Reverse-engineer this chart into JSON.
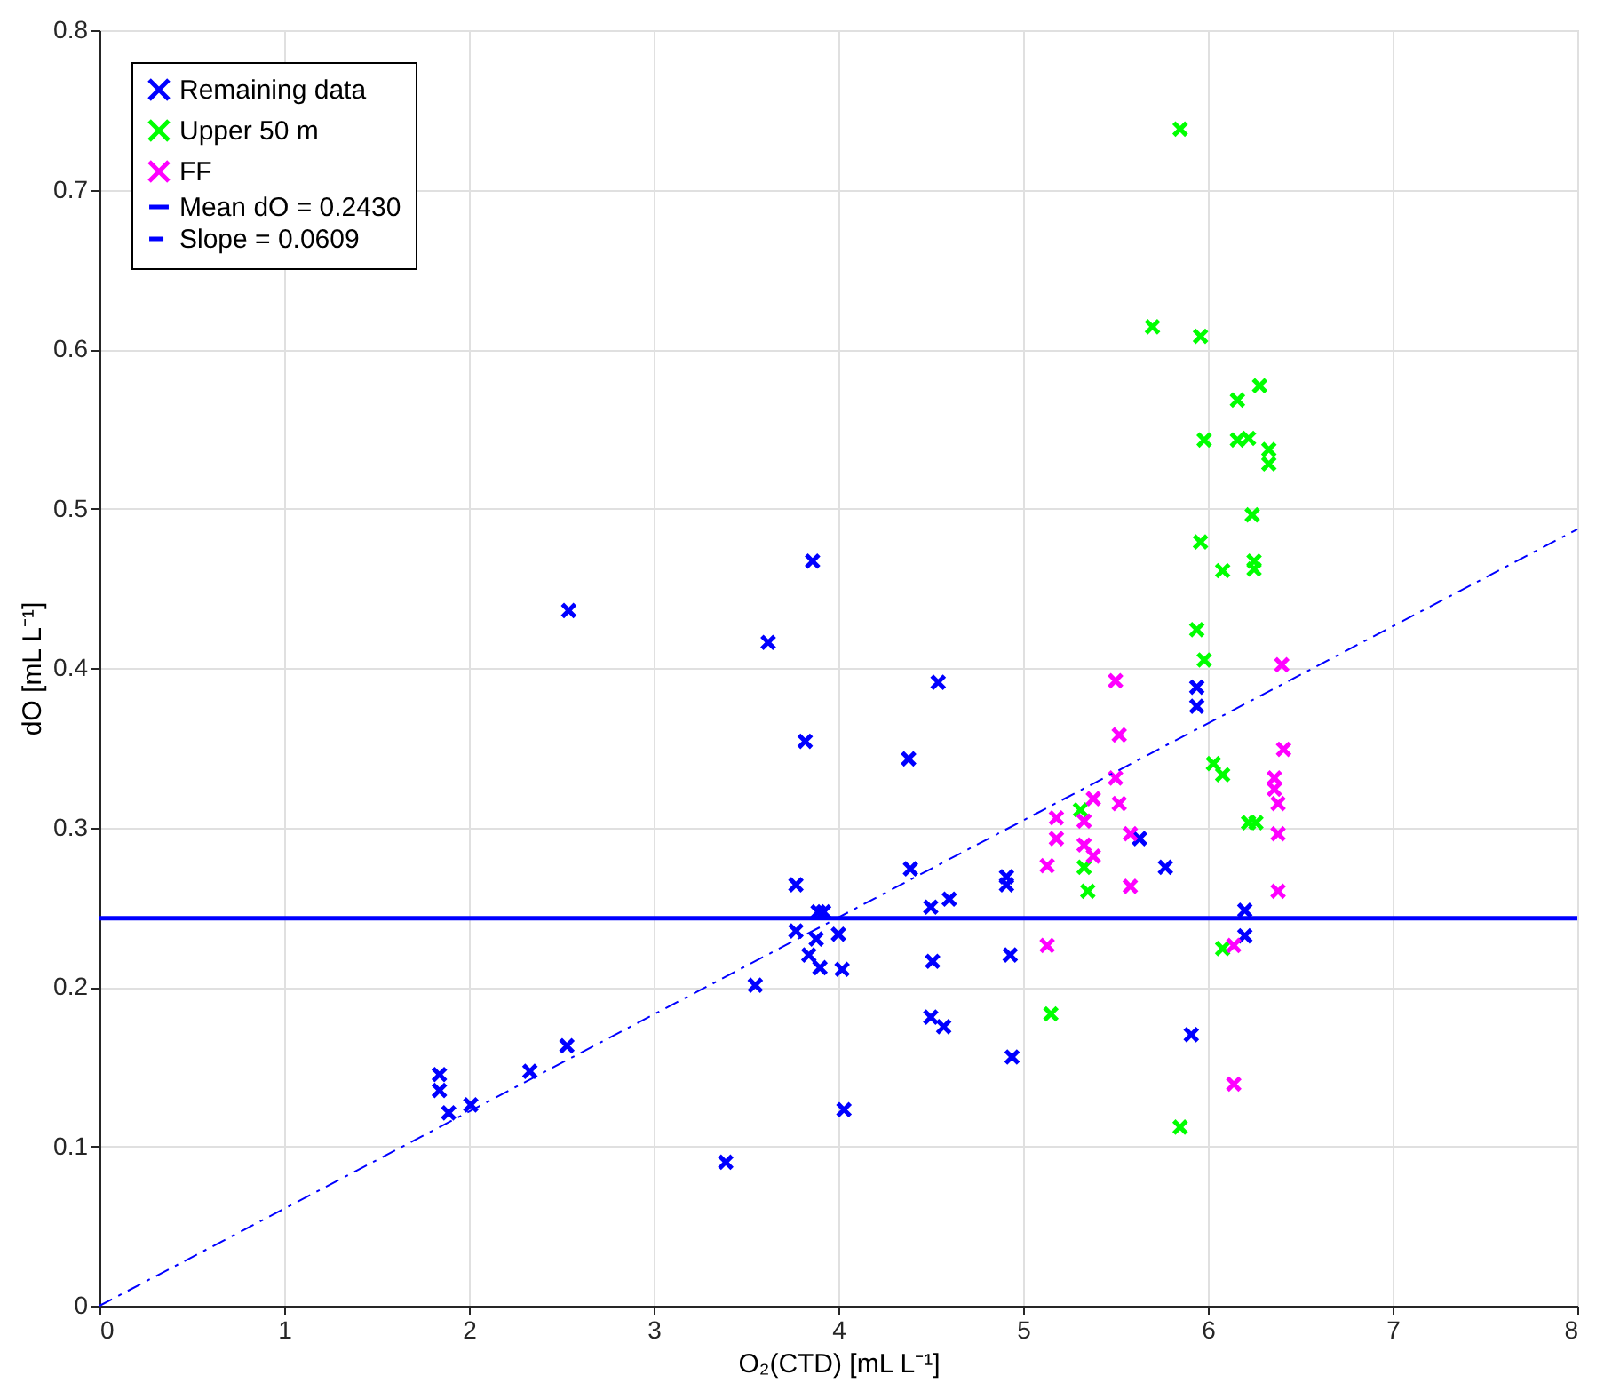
{
  "chart_data": {
    "type": "scatter",
    "xlabel": "O₂(CTD) [mL L⁻¹]",
    "ylabel": "dO [mL L⁻¹]",
    "xlim": [
      0,
      8
    ],
    "ylim": [
      0,
      0.8
    ],
    "xticks": [
      0,
      1,
      2,
      3,
      4,
      5,
      6,
      7,
      8
    ],
    "yticks": [
      0,
      0.1,
      0.2,
      0.3,
      0.4,
      0.5,
      0.6,
      0.7,
      0.8
    ],
    "grid": true,
    "legend": "top left",
    "series": [
      {
        "name": "Remaining data",
        "color": "#0000ff",
        "marker": "cross",
        "x": [
          2.54,
          3.62,
          3.86,
          3.55,
          1.84,
          1.84,
          1.89,
          2.01,
          2.33,
          2.53,
          3.39,
          4.54,
          3.82,
          4.38,
          3.77,
          4.39,
          4.91,
          4.91,
          3.89,
          3.92,
          4.5,
          4.6,
          3.77,
          3.88,
          4.0,
          3.84,
          3.9,
          4.02,
          4.51,
          4.93,
          4.5,
          4.57,
          4.94,
          4.03,
          5.94,
          5.94,
          5.63,
          5.77,
          6.2,
          6.2,
          5.91
        ],
        "values": [
          0.436,
          0.416,
          0.467,
          0.201,
          0.145,
          0.135,
          0.121,
          0.126,
          0.147,
          0.163,
          0.09,
          0.391,
          0.354,
          0.343,
          0.264,
          0.274,
          0.269,
          0.264,
          0.247,
          0.247,
          0.25,
          0.255,
          0.235,
          0.23,
          0.233,
          0.22,
          0.212,
          0.211,
          0.216,
          0.22,
          0.181,
          0.175,
          0.156,
          0.123,
          0.388,
          0.376,
          0.293,
          0.275,
          0.248,
          0.232,
          0.17
        ]
      },
      {
        "name": "Upper 50 m",
        "color": "#00ff00",
        "marker": "cross",
        "x": [
          5.85,
          5.7,
          5.96,
          6.28,
          6.16,
          5.98,
          6.16,
          6.22,
          6.33,
          6.33,
          6.24,
          5.96,
          6.08,
          6.25,
          6.25,
          5.94,
          5.98,
          6.03,
          6.08,
          6.22,
          6.26,
          5.31,
          5.33,
          5.35,
          6.08,
          5.15,
          5.85
        ],
        "values": [
          0.738,
          0.614,
          0.608,
          0.577,
          0.568,
          0.543,
          0.543,
          0.544,
          0.537,
          0.528,
          0.496,
          0.479,
          0.461,
          0.467,
          0.462,
          0.424,
          0.405,
          0.34,
          0.333,
          0.303,
          0.303,
          0.311,
          0.275,
          0.26,
          0.224,
          0.183,
          0.112
        ]
      },
      {
        "name": "FF",
        "color": "#ff00ff",
        "marker": "cross",
        "x": [
          6.4,
          5.5,
          5.52,
          6.41,
          5.5,
          5.38,
          5.52,
          5.18,
          5.33,
          6.36,
          6.36,
          6.38,
          5.18,
          5.33,
          5.38,
          5.58,
          6.38,
          5.13,
          5.58,
          6.38,
          5.13,
          6.14,
          6.14
        ],
        "values": [
          0.402,
          0.392,
          0.358,
          0.349,
          0.331,
          0.318,
          0.315,
          0.306,
          0.304,
          0.331,
          0.324,
          0.315,
          0.293,
          0.289,
          0.282,
          0.296,
          0.296,
          0.276,
          0.263,
          0.26,
          0.226,
          0.226,
          0.139
        ]
      },
      {
        "name": "Mean dO = 0.2430",
        "type": "line",
        "color": "#0000ff",
        "marker": "none",
        "line_style": "solid",
        "x": [
          0,
          8
        ],
        "values": [
          0.243,
          0.243
        ]
      },
      {
        "name": "Slope = 0.0609",
        "type": "line",
        "color": "#0000ff",
        "marker": "none",
        "line_style": "dashed",
        "x": [
          0,
          8
        ],
        "values": [
          0,
          0.487
        ]
      }
    ]
  }
}
